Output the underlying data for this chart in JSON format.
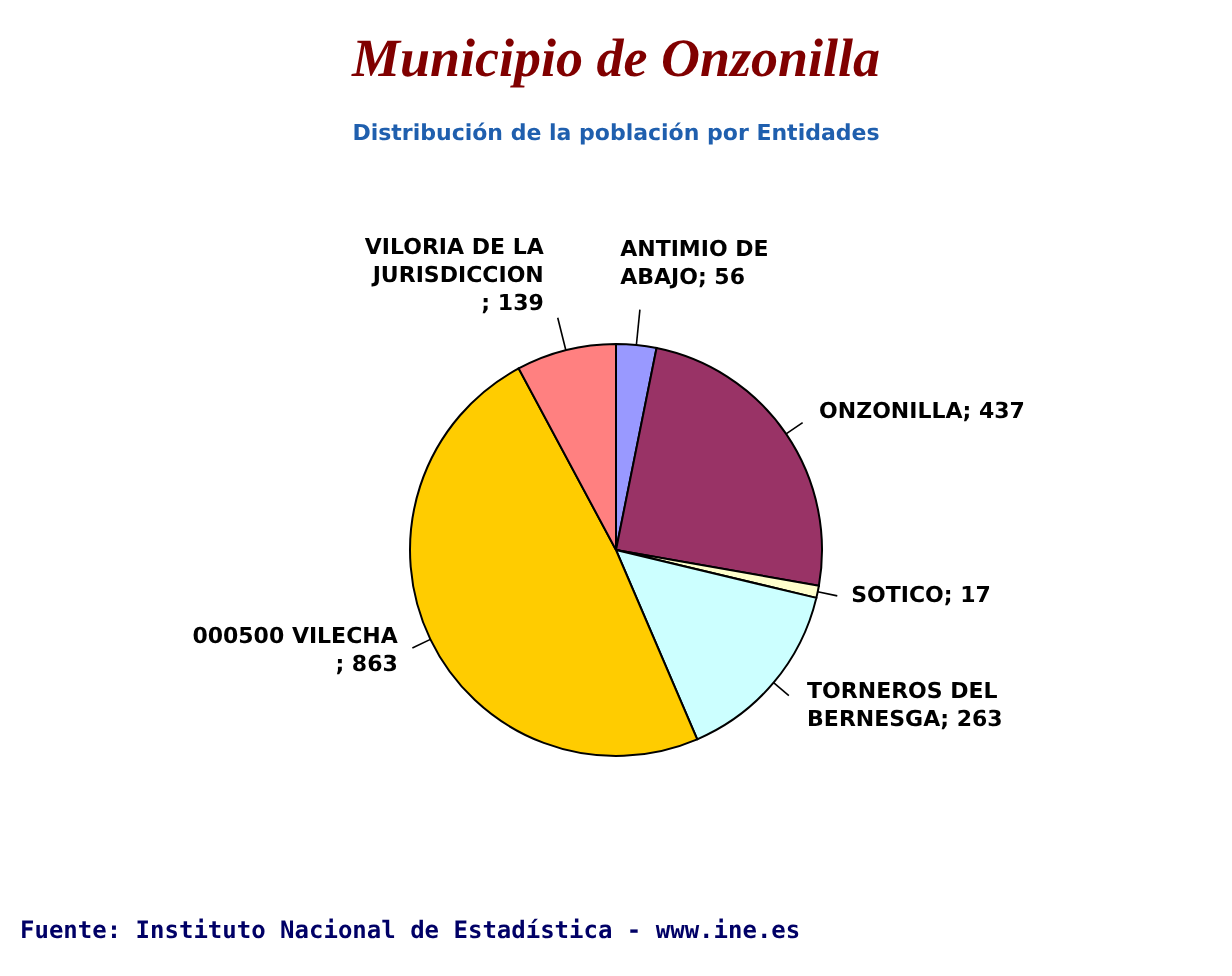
{
  "chart_data": {
    "type": "pie",
    "title": "Municipio de Onzonilla",
    "subtitle": "Distribución de la población por Entidades",
    "categories": [
      "ANTIMIO DE ABAJO",
      "ONZONILLA",
      "SOTICO",
      "TORNEROS DEL BERNESGA",
      "000500 VILECHA",
      "VILORIA DE LA JURISDICCION"
    ],
    "values": [
      56,
      437,
      17,
      263,
      863,
      139
    ],
    "colors": [
      "#9999ff",
      "#993366",
      "#ffffcc",
      "#ccffff",
      "#ffcc00",
      "#ff8080"
    ],
    "value_labels": [
      "; 56",
      "; 437",
      "; 17",
      "; 263",
      "; 863",
      "; 139"
    ],
    "annotations": [
      "Fuente: Instituto Nacional de Estadística - www.ine.es"
    ]
  }
}
